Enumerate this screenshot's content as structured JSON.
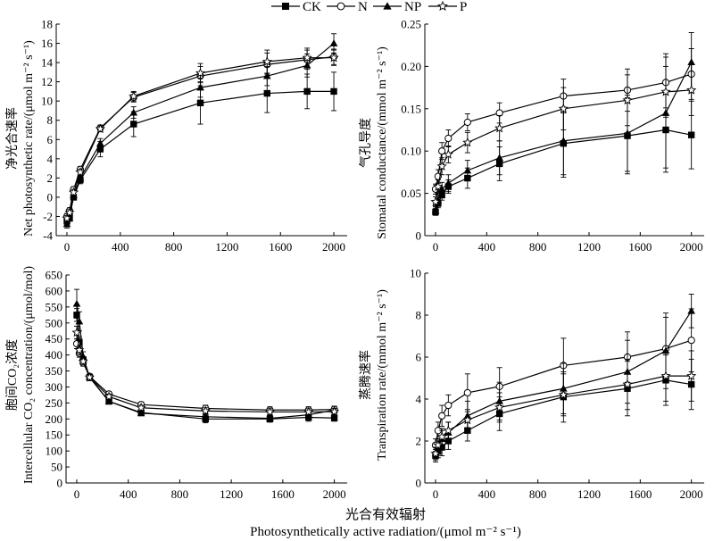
{
  "legend": [
    {
      "name": "CK",
      "marker": "filled-square-marker"
    },
    {
      "name": "N",
      "marker": "open-circle-marker"
    },
    {
      "name": "NP",
      "marker": "filled-triangle-marker"
    },
    {
      "name": "P",
      "marker": "open-star-marker"
    }
  ],
  "xlabel_cn": "光合有效辐射",
  "xlabel_en": "Photosynthetically active radiation/(μmol m⁻² s⁻¹)",
  "chart_data": [
    {
      "type": "line",
      "ylabel_cn": "净光合速率",
      "ylabel_en": "Net photosynthetic rate/(μmol m⁻² s⁻¹)",
      "xlim": [
        0,
        2100
      ],
      "ylim": [
        -4,
        18
      ],
      "xticks": [
        0,
        400,
        800,
        1200,
        1600,
        2000
      ],
      "yticks": [
        -4,
        -2,
        0,
        2,
        4,
        6,
        8,
        10,
        12,
        14,
        16,
        18
      ],
      "x": [
        0,
        20,
        50,
        100,
        250,
        500,
        1000,
        1500,
        1800,
        2000
      ],
      "series": [
        {
          "name": "CK",
          "values": [
            -2.5,
            -2.0,
            0.0,
            1.8,
            5.0,
            7.6,
            9.8,
            10.8,
            11.0,
            11.0
          ],
          "err": [
            0.4,
            0.3,
            0.3,
            0.4,
            0.8,
            1.3,
            2.2,
            2.0,
            1.8,
            2.0
          ]
        },
        {
          "name": "N",
          "values": [
            -2.0,
            -1.4,
            0.8,
            2.9,
            7.2,
            10.4,
            12.6,
            13.8,
            14.3,
            14.6
          ],
          "err": [
            0.3,
            0.3,
            0.3,
            0.3,
            0.3,
            0.5,
            1.0,
            1.2,
            1.0,
            0.8
          ]
        },
        {
          "name": "NP",
          "values": [
            -2.8,
            -2.2,
            0.2,
            2.0,
            5.6,
            8.8,
            11.4,
            12.6,
            13.7,
            16.0
          ],
          "err": [
            0.4,
            0.3,
            0.3,
            0.4,
            0.5,
            0.6,
            1.0,
            1.0,
            1.2,
            1.0
          ]
        },
        {
          "name": "P",
          "values": [
            -2.2,
            -1.6,
            0.5,
            2.6,
            7.1,
            10.5,
            12.9,
            14.1,
            14.5,
            14.5
          ],
          "err": [
            0.3,
            0.3,
            0.3,
            0.3,
            0.3,
            0.5,
            1.0,
            1.2,
            1.0,
            0.8
          ]
        }
      ]
    },
    {
      "type": "line",
      "ylabel_cn": "气孔导度",
      "ylabel_en": "Stomatal conductance/(mmol m⁻² s⁻¹)",
      "xlim": [
        0,
        2100
      ],
      "ylim": [
        0,
        0.25
      ],
      "xticks": [
        0,
        400,
        800,
        1200,
        1600,
        2000
      ],
      "yticks": [
        0,
        0.05,
        0.1,
        0.15,
        0.2,
        0.25
      ],
      "ytick_labels": [
        "0",
        "0.05",
        "0.10",
        "0.15",
        "0.20",
        "0.25"
      ],
      "x": [
        0,
        20,
        50,
        100,
        250,
        500,
        1000,
        1500,
        1800,
        2000
      ],
      "series": [
        {
          "name": "CK",
          "values": [
            0.028,
            0.038,
            0.048,
            0.058,
            0.068,
            0.085,
            0.109,
            0.118,
            0.125,
            0.119
          ],
          "err": [
            0.004,
            0.005,
            0.006,
            0.008,
            0.012,
            0.02,
            0.04,
            0.045,
            0.045,
            0.04
          ]
        },
        {
          "name": "N",
          "values": [
            0.055,
            0.07,
            0.1,
            0.115,
            0.134,
            0.145,
            0.165,
            0.172,
            0.181,
            0.191
          ],
          "err": [
            0.006,
            0.008,
            0.01,
            0.01,
            0.01,
            0.012,
            0.02,
            0.025,
            0.03,
            0.03
          ]
        },
        {
          "name": "NP",
          "values": [
            0.03,
            0.042,
            0.055,
            0.062,
            0.077,
            0.092,
            0.112,
            0.121,
            0.145,
            0.205
          ],
          "err": [
            0.005,
            0.006,
            0.008,
            0.01,
            0.012,
            0.02,
            0.04,
            0.045,
            0.07,
            0.035
          ]
        },
        {
          "name": "P",
          "values": [
            0.04,
            0.058,
            0.082,
            0.096,
            0.11,
            0.127,
            0.15,
            0.16,
            0.17,
            0.172
          ],
          "err": [
            0.006,
            0.008,
            0.01,
            0.01,
            0.012,
            0.015,
            0.025,
            0.03,
            0.03,
            0.03
          ]
        }
      ]
    },
    {
      "type": "line",
      "ylabel_cn": "胞间CO₂浓度",
      "ylabel_en": "Intercellular CO₂ concentration/(μmol/mol)",
      "xlim": [
        0,
        2100
      ],
      "ylim": [
        0,
        650
      ],
      "xticks": [
        0,
        400,
        800,
        1200,
        1600,
        2000
      ],
      "yticks": [
        0,
        50,
        100,
        150,
        200,
        250,
        300,
        350,
        400,
        450,
        500,
        550,
        600,
        650
      ],
      "x": [
        0,
        20,
        50,
        100,
        250,
        500,
        1000,
        1500,
        1800,
        2000
      ],
      "series": [
        {
          "name": "CK",
          "values": [
            525,
            440,
            385,
            330,
            255,
            220,
            200,
            200,
            205,
            203
          ],
          "err": [
            20,
            15,
            10,
            10,
            8,
            8,
            12,
            10,
            12,
            10
          ]
        },
        {
          "name": "N",
          "values": [
            435,
            405,
            375,
            333,
            278,
            245,
            233,
            228,
            228,
            230
          ],
          "err": [
            15,
            12,
            10,
            8,
            8,
            8,
            10,
            10,
            10,
            10
          ]
        },
        {
          "name": "NP",
          "values": [
            560,
            505,
            395,
            330,
            255,
            218,
            207,
            202,
            213,
            228
          ],
          "err": [
            45,
            30,
            15,
            10,
            8,
            8,
            10,
            10,
            10,
            12
          ]
        },
        {
          "name": "P",
          "values": [
            470,
            415,
            380,
            330,
            270,
            235,
            225,
            222,
            222,
            223
          ],
          "err": [
            20,
            15,
            10,
            8,
            8,
            8,
            10,
            10,
            10,
            10
          ]
        }
      ]
    },
    {
      "type": "line",
      "ylabel_cn": "蒸腾速率",
      "ylabel_en": "Transpiration rate/(mmol m⁻² s⁻¹)",
      "xlim": [
        0,
        2100
      ],
      "ylim": [
        0,
        10
      ],
      "xticks": [
        0,
        400,
        800,
        1200,
        1600,
        2000
      ],
      "yticks": [
        0,
        2,
        4,
        6,
        8,
        10
      ],
      "x": [
        0,
        20,
        50,
        100,
        250,
        500,
        1000,
        1500,
        1800,
        2000
      ],
      "series": [
        {
          "name": "CK",
          "values": [
            1.3,
            1.5,
            1.7,
            2.0,
            2.5,
            3.3,
            4.1,
            4.5,
            4.9,
            4.7
          ],
          "err": [
            0.3,
            0.3,
            0.4,
            0.4,
            0.5,
            0.8,
            1.2,
            1.3,
            1.2,
            1.2
          ]
        },
        {
          "name": "N",
          "values": [
            1.8,
            2.5,
            3.2,
            3.7,
            4.3,
            4.6,
            5.6,
            6.0,
            6.4,
            6.8
          ],
          "err": [
            0.3,
            0.4,
            0.5,
            0.5,
            0.9,
            0.9,
            1.3,
            1.2,
            1.5,
            1.5
          ]
        },
        {
          "name": "NP",
          "values": [
            1.4,
            1.7,
            2.1,
            2.4,
            3.2,
            3.9,
            4.5,
            5.3,
            6.3,
            8.2
          ],
          "err": [
            0.3,
            0.3,
            0.4,
            0.5,
            0.7,
            0.9,
            1.2,
            1.5,
            1.8,
            0.8
          ]
        },
        {
          "name": "P",
          "values": [
            1.4,
            1.8,
            2.2,
            2.5,
            3.0,
            3.6,
            4.2,
            4.7,
            5.1,
            5.1
          ],
          "err": [
            0.3,
            0.3,
            0.4,
            0.4,
            0.5,
            0.7,
            1.0,
            1.2,
            1.2,
            1.2
          ]
        }
      ]
    }
  ]
}
